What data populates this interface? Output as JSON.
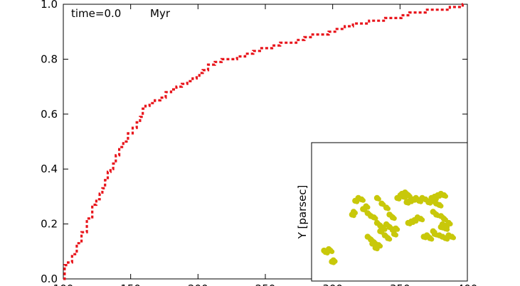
{
  "annotation": {
    "time_label": "time=0.0",
    "unit_label": "Myr"
  },
  "chart_data": [
    {
      "type": "line",
      "title": "",
      "xlabel": "",
      "ylabel": "",
      "xlim": [
        100,
        400
      ],
      "ylim": [
        0.0,
        1.0
      ],
      "grid": false,
      "x_ticks": [
        100,
        150,
        200,
        250,
        300,
        350,
        400
      ],
      "x_tick_labels": [
        "100",
        "150",
        "200",
        "250",
        "300",
        "350",
        "400"
      ],
      "y_ticks": [
        0.0,
        0.2,
        0.4,
        0.6,
        0.8,
        1.0
      ],
      "y_tick_labels": [
        "0.0",
        "0.2",
        "0.4",
        "0.6",
        "0.8",
        "1.0"
      ],
      "line_style": "dotted",
      "color": "#e8141b",
      "series": [
        {
          "x": [
            100,
            102,
            105,
            108,
            112,
            115,
            120,
            123,
            126,
            128,
            130,
            132,
            134,
            136,
            138,
            140,
            143,
            146,
            150,
            153,
            156,
            158,
            160,
            162,
            166,
            170,
            174,
            178,
            182,
            186,
            190,
            194,
            198,
            200,
            202,
            205,
            210,
            215,
            220,
            226,
            232,
            238,
            244,
            248,
            252,
            258,
            264,
            270,
            276,
            282,
            288,
            294,
            300,
            306,
            312,
            318,
            324,
            330,
            336,
            342,
            348,
            354,
            360,
            366,
            372,
            378,
            384,
            390,
            395,
            398
          ],
          "y": [
            0.0,
            0.05,
            0.06,
            0.09,
            0.13,
            0.17,
            0.22,
            0.27,
            0.29,
            0.31,
            0.33,
            0.36,
            0.39,
            0.4,
            0.42,
            0.45,
            0.48,
            0.5,
            0.53,
            0.55,
            0.57,
            0.59,
            0.62,
            0.63,
            0.64,
            0.65,
            0.66,
            0.68,
            0.69,
            0.7,
            0.71,
            0.72,
            0.73,
            0.74,
            0.75,
            0.76,
            0.78,
            0.79,
            0.8,
            0.8,
            0.81,
            0.82,
            0.83,
            0.84,
            0.84,
            0.85,
            0.86,
            0.86,
            0.87,
            0.88,
            0.89,
            0.89,
            0.9,
            0.91,
            0.92,
            0.93,
            0.93,
            0.94,
            0.94,
            0.95,
            0.95,
            0.96,
            0.97,
            0.97,
            0.98,
            0.98,
            0.98,
            0.99,
            0.99,
            1.0
          ]
        }
      ]
    },
    {
      "type": "scatter",
      "title": "",
      "xlabel": "",
      "ylabel": "Y [parsec]",
      "xlim": [
        0,
        100
      ],
      "ylim": [
        0,
        100
      ],
      "color": "#c8c80a",
      "series": [
        {
          "x": [
            8,
            9,
            11,
            12,
            14,
            13,
            28,
            30,
            32,
            26,
            27,
            33,
            35,
            36,
            38,
            40,
            42,
            44,
            46,
            48,
            50,
            52,
            54,
            42,
            45,
            48,
            50,
            44,
            47,
            49,
            53,
            38,
            40,
            36,
            41,
            39,
            43,
            52,
            55,
            57,
            59,
            61,
            63,
            65,
            67,
            69,
            71,
            73,
            75,
            77,
            79,
            80,
            82,
            78,
            80,
            83,
            85,
            84,
            86,
            88,
            74,
            76,
            72,
            70,
            68,
            66,
            64,
            62,
            77,
            79,
            81,
            83,
            85,
            79,
            82,
            84,
            86,
            88,
            90,
            83,
            86,
            78,
            58,
            60,
            62
          ],
          "y": [
            22,
            21,
            23,
            22,
            15,
            14,
            58,
            60,
            59,
            48,
            50,
            52,
            54,
            49,
            47,
            46,
            42,
            40,
            38,
            41,
            39,
            37,
            38,
            60,
            56,
            53,
            48,
            36,
            33,
            31,
            34,
            30,
            28,
            32,
            24,
            27,
            26,
            46,
            60,
            62,
            61,
            57,
            58,
            59,
            60,
            58,
            60,
            59,
            57,
            58,
            60,
            56,
            55,
            50,
            48,
            47,
            45,
            41,
            40,
            42,
            33,
            31,
            32,
            45,
            46,
            44,
            43,
            42,
            60,
            61,
            62,
            63,
            62,
            34,
            33,
            32,
            31,
            33,
            32,
            39,
            38,
            36,
            63,
            64,
            62
          ]
        }
      ]
    }
  ]
}
